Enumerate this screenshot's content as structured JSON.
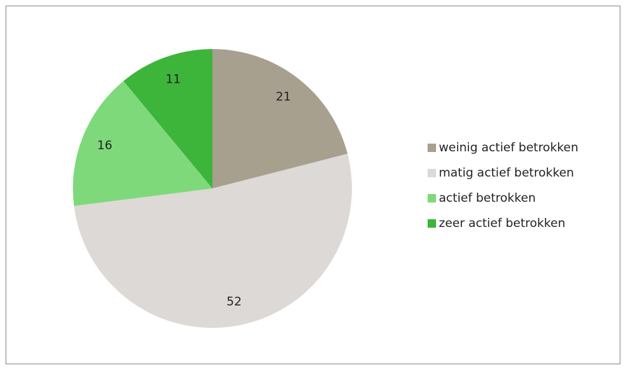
{
  "chart_data": {
    "type": "pie",
    "categories": [
      "weinig actief betrokken",
      "matig actief betrokken",
      "actief betrokken",
      "zeer actief betrokken"
    ],
    "values": [
      21,
      52,
      16,
      11
    ],
    "colors": [
      "#a7a08e",
      "#dcd9d6",
      "#7ed97b",
      "#3cb53a"
    ],
    "legend": "right"
  }
}
